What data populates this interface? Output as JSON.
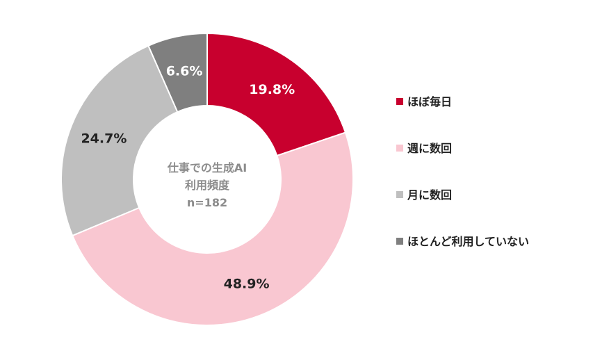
{
  "chart_data": {
    "type": "pie",
    "variant": "donut",
    "center_label": [
      "仕事での生成AI",
      "利用頻度",
      "n=182"
    ],
    "categories": [
      "ほぼ毎日",
      "週に数回",
      "月に数回",
      "ほとんど利用していない"
    ],
    "values": [
      19.8,
      48.9,
      24.7,
      6.6
    ],
    "value_labels": [
      "19.8%",
      "48.9%",
      "24.7%",
      "6.6%"
    ],
    "colors": [
      "#c8002e",
      "#f9c7d1",
      "#bfbfbf",
      "#7f7f7f"
    ],
    "label_colors": [
      "#ffffff",
      "#222222",
      "#222222",
      "#ffffff"
    ],
    "legend_position": "right",
    "start_angle": "top",
    "direction": "clockwise"
  }
}
